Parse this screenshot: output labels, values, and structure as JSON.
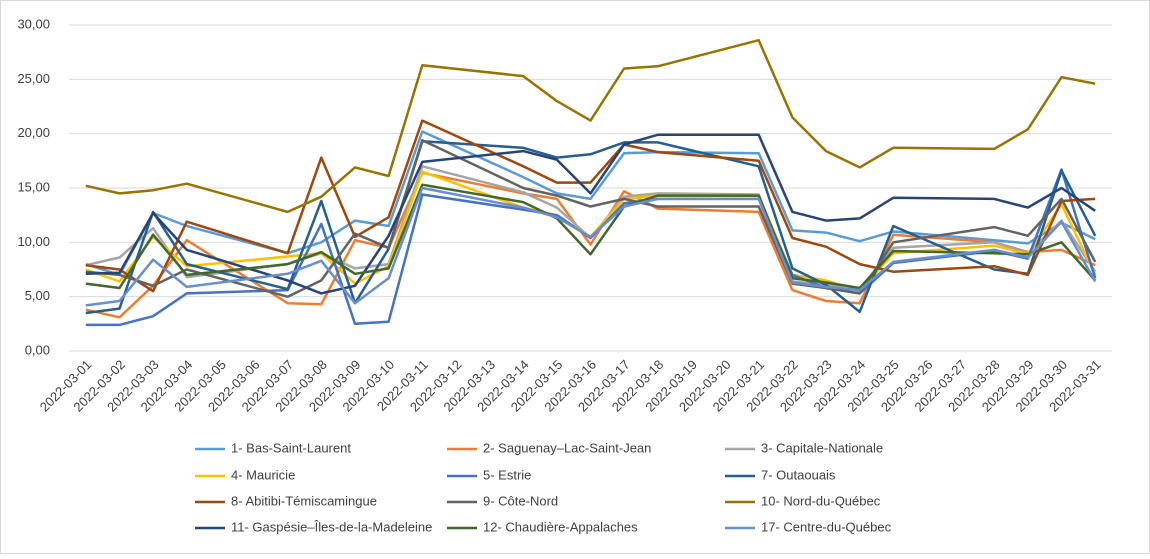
{
  "chart_data": {
    "type": "line",
    "categories": [
      "2022-03-01",
      "2022-03-02",
      "2022-03-03",
      "2022-03-04",
      "2022-03-05",
      "2022-03-06",
      "2022-03-07",
      "2022-03-08",
      "2022-03-09",
      "2022-03-10",
      "2022-03-11",
      "2022-03-12",
      "2022-03-13",
      "2022-03-14",
      "2022-03-15",
      "2022-03-16",
      "2022-03-17",
      "2022-03-18",
      "2022-03-19",
      "2022-03-20",
      "2022-03-21",
      "2022-03-22",
      "2022-03-23",
      "2022-03-24",
      "2022-03-25",
      "2022-03-26",
      "2022-03-27",
      "2022-03-28",
      "2022-03-29",
      "2022-03-30",
      "2022-03-31"
    ],
    "ylim": [
      0,
      30
    ],
    "yticks": [
      {
        "value": 0,
        "label": "0,00"
      },
      {
        "value": 5,
        "label": "5,00"
      },
      {
        "value": 10,
        "label": "10,00"
      },
      {
        "value": 15,
        "label": "15,00"
      },
      {
        "value": 20,
        "label": "20,00"
      },
      {
        "value": 25,
        "label": "25,00"
      },
      {
        "value": 30,
        "label": "30,00"
      }
    ],
    "grid": true,
    "span_gaps": true,
    "legend": "bottom",
    "series": [
      {
        "name": "1- Bas-Saint-Laurent",
        "color": "#5b9bd5",
        "values": [
          8.0,
          7.0,
          12.7,
          11.5,
          null,
          null,
          9.0,
          10.0,
          12.0,
          11.5,
          20.2,
          null,
          null,
          16.0,
          14.5,
          14.0,
          18.2,
          18.3,
          null,
          null,
          18.2,
          11.1,
          10.9,
          10.1,
          11.0,
          null,
          null,
          10.2,
          9.9,
          11.8,
          10.3
        ]
      },
      {
        "name": "2- Saguenay–Lac-Saint-Jean",
        "color": "#ed7d31",
        "values": [
          3.8,
          3.1,
          6.0,
          10.2,
          null,
          null,
          4.4,
          4.3,
          10.2,
          9.5,
          16.4,
          null,
          null,
          14.5,
          14.0,
          9.8,
          14.7,
          13.1,
          null,
          null,
          12.8,
          5.6,
          4.6,
          4.4,
          10.7,
          null,
          null,
          10.0,
          9.1,
          9.3,
          7.9
        ]
      },
      {
        "name": "3- Capitale-Nationale",
        "color": "#a5a5a5",
        "values": [
          7.9,
          8.6,
          11.3,
          6.8,
          null,
          null,
          8.0,
          9.0,
          7.6,
          8.0,
          17.0,
          null,
          null,
          14.6,
          13.2,
          10.4,
          14.2,
          14.5,
          null,
          null,
          14.4,
          6.4,
          6.1,
          5.7,
          9.5,
          null,
          null,
          10.0,
          9.0,
          12.0,
          7.3
        ]
      },
      {
        "name": "4- Mauricie",
        "color": "#ffc000",
        "values": [
          7.5,
          6.4,
          10.5,
          7.8,
          null,
          null,
          8.7,
          9.0,
          6.2,
          7.8,
          16.5,
          null,
          null,
          13.2,
          12.5,
          10.5,
          14.0,
          14.3,
          null,
          null,
          14.3,
          7.0,
          6.5,
          5.5,
          9.0,
          null,
          null,
          9.7,
          8.9,
          13.5,
          7.0
        ]
      },
      {
        "name": "5- Estrie",
        "color": "#4472c4",
        "values": [
          2.4,
          2.4,
          3.2,
          5.3,
          null,
          null,
          5.6,
          11.7,
          2.5,
          2.7,
          14.4,
          null,
          null,
          13.0,
          12.5,
          10.4,
          13.6,
          14.0,
          null,
          null,
          14.0,
          7.0,
          5.8,
          5.3,
          8.1,
          null,
          null,
          9.2,
          8.5,
          16.7,
          6.7
        ]
      },
      {
        "name": "7- Outaouais",
        "color": "#255e91",
        "values": [
          3.5,
          3.9,
          12.8,
          8.0,
          null,
          null,
          5.7,
          13.8,
          4.4,
          9.4,
          19.3,
          null,
          null,
          18.7,
          17.8,
          18.1,
          19.2,
          19.2,
          null,
          null,
          17.0,
          7.6,
          6.1,
          3.6,
          11.5,
          null,
          null,
          7.5,
          7.1,
          16.6,
          10.6
        ]
      },
      {
        "name": "8- Abitibi-Témiscamingue",
        "color": "#9e480e",
        "values": [
          7.9,
          7.5,
          5.5,
          11.9,
          null,
          null,
          9.0,
          17.8,
          10.5,
          12.3,
          21.2,
          null,
          null,
          17.0,
          15.5,
          15.5,
          19.0,
          18.3,
          null,
          null,
          17.5,
          10.4,
          9.6,
          8.0,
          7.3,
          null,
          null,
          7.8,
          7.0,
          13.8,
          14.0
        ]
      },
      {
        "name": "9- Côte-Nord",
        "color": "#636363",
        "values": [
          7.3,
          7.0,
          6.0,
          7.5,
          null,
          null,
          5.0,
          6.5,
          10.8,
          9.5,
          19.4,
          null,
          null,
          15.0,
          14.3,
          13.3,
          14.0,
          13.3,
          null,
          null,
          13.3,
          6.2,
          5.8,
          5.3,
          10.0,
          null,
          null,
          11.4,
          10.6,
          14.0,
          8.2
        ]
      },
      {
        "name": "10- Nord-du-Québec",
        "color": "#997300",
        "values": [
          15.2,
          14.5,
          14.8,
          15.4,
          null,
          null,
          12.8,
          14.2,
          16.9,
          16.1,
          26.3,
          null,
          null,
          25.3,
          23.0,
          21.2,
          26.0,
          26.2,
          null,
          null,
          28.6,
          21.5,
          18.4,
          16.9,
          18.7,
          null,
          null,
          18.6,
          20.4,
          25.2,
          24.6
        ]
      },
      {
        "name": "11- Gaspésie–Îles-de-la-Madeleine",
        "color": "#264478",
        "values": [
          7.1,
          7.2,
          12.7,
          9.3,
          null,
          null,
          6.5,
          5.3,
          6.0,
          10.6,
          17.4,
          null,
          null,
          18.4,
          17.6,
          14.5,
          19.0,
          19.9,
          null,
          null,
          19.9,
          12.8,
          12.0,
          12.2,
          14.1,
          null,
          null,
          14.0,
          13.2,
          15.0,
          12.9
        ]
      },
      {
        "name": "12- Chaudière-Appalaches",
        "color": "#43682b",
        "values": [
          6.2,
          5.8,
          10.7,
          7.0,
          null,
          null,
          8.0,
          9.1,
          7.1,
          7.6,
          15.3,
          null,
          null,
          13.7,
          12.2,
          8.9,
          13.3,
          14.3,
          null,
          null,
          14.3,
          6.7,
          6.3,
          5.8,
          9.2,
          null,
          null,
          9.0,
          8.9,
          10.0,
          6.5
        ]
      },
      {
        "name": "17- Centre-du-Québec",
        "color": "#698ed0",
        "values": [
          4.2,
          4.6,
          8.4,
          5.9,
          null,
          null,
          7.1,
          8.3,
          4.4,
          6.7,
          15.0,
          null,
          null,
          13.2,
          12.3,
          10.5,
          13.3,
          14.0,
          null,
          null,
          14.0,
          6.3,
          5.9,
          5.6,
          8.2,
          null,
          null,
          9.3,
          8.6,
          11.9,
          6.4
        ]
      }
    ]
  }
}
